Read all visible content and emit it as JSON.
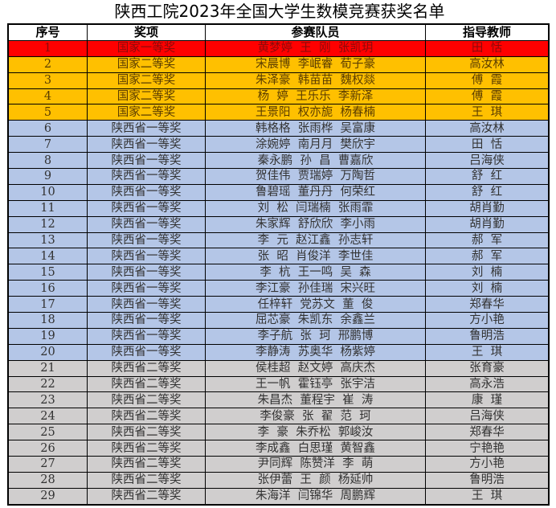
{
  "title": "陕西工院2023年全国大学生数模竞赛获奖名单",
  "headers": [
    "序号",
    "奖项",
    "参赛队员",
    "指导教师"
  ],
  "level_colors": {
    "国家一等奖": "#ff0000",
    "国家二等奖": "#ffc000",
    "陕西省一等奖": "#b4c6e7",
    "陕西省二等奖": "#d0cece"
  },
  "rows": [
    [
      "1",
      "国家一等奖",
      "黄梦婷  王  刚  张凯玥",
      "田  恬"
    ],
    [
      "2",
      "国家二等奖",
      "宋晨博  李岷睿  荀子豪",
      "高汝林"
    ],
    [
      "3",
      "国家二等奖",
      "朱泽豪  韩苗苗  魏权燚",
      "傅  霞"
    ],
    [
      "4",
      "国家二等奖",
      "杨  婷  王乐乐  李新泽",
      "傅  霞"
    ],
    [
      "5",
      "国家二等奖",
      "王景阳  权亦旎  杨春楠",
      "王  琪"
    ],
    [
      "6",
      "陕西省一等奖",
      "韩格格  张雨桦  吴富康",
      "高汝林"
    ],
    [
      "7",
      "陕西省一等奖",
      "涂婉婷  南月月  樊欣宇",
      "田  恬"
    ],
    [
      "8",
      "陕西省一等奖",
      "秦永鹏  孙  昌  曹嘉欣",
      "吕海侠"
    ],
    [
      "9",
      "陕西省一等奖",
      "贺佳伟  贾瑞婷  万陶哲",
      "舒  红"
    ],
    [
      "10",
      "陕西省一等奖",
      "鲁碧瑶  董丹丹  何荣红",
      "舒  红"
    ],
    [
      "11",
      "陕西省一等奖",
      "刘  松  闫瑞楠  张雨霏",
      "胡肖勤"
    ],
    [
      "12",
      "陕西省一等奖",
      "朱家辉  舒欣欣  李小雨",
      "胡肖勤"
    ],
    [
      "13",
      "陕西省一等奖",
      "李  元  赵江鑫  孙志轩",
      "郝  军"
    ],
    [
      "14",
      "陕西省一等奖",
      "张  昭  肖俊洋  李世佳",
      "郝  军"
    ],
    [
      "15",
      "陕西省一等奖",
      "李  杭  王一鸣  吴  森",
      "刘  楠"
    ],
    [
      "16",
      "陕西省一等奖",
      "李江豪  孙佳瑞  宋兴旺",
      "刘  楠"
    ],
    [
      "17",
      "陕西省一等奖",
      "任梓轩  党苏文  董  俊",
      "郑春华"
    ],
    [
      "18",
      "陕西省一等奖",
      "屈芯豪  朱凯东  余鑫兰",
      "方小艳"
    ],
    [
      "19",
      "陕西省一等奖",
      "李子航  张  珂  邢鹏博",
      "鲁明浩"
    ],
    [
      "20",
      "陕西省一等奖",
      "李静涛  苏奥华  杨紫婷",
      "王  琪"
    ],
    [
      "21",
      "陕西省二等奖",
      "侯桂超  赵文婷  高庆杰",
      "张育豪"
    ],
    [
      "22",
      "陕西省二等奖",
      "王一帆  霍钰亭  张宇洁",
      "高永浩"
    ],
    [
      "23",
      "陕西省二等奖",
      "朱昌杰  董程宇  崔  涛",
      "康  瑾"
    ],
    [
      "24",
      "陕西省二等奖",
      "李俊豪  张  翟  范  珂",
      "吕海侠"
    ],
    [
      "25",
      "陕西省二等奖",
      "李  豪  朱乔松  郭峻汝",
      "郑春华"
    ],
    [
      "26",
      "陕西省二等奖",
      "李成鑫  白思瑾  黄智鑫",
      "宁艳艳"
    ],
    [
      "27",
      "陕西省二等奖",
      "尹同辉  陈赞洋  李  萌",
      "方小艳"
    ],
    [
      "28",
      "陕西省二等奖",
      "张伊蕾  王  颜  杨延帅",
      "鲁明浩"
    ],
    [
      "29",
      "陕西省二等奖",
      "朱海洋  闫锦华  周鹏辉",
      "王  琪"
    ]
  ]
}
